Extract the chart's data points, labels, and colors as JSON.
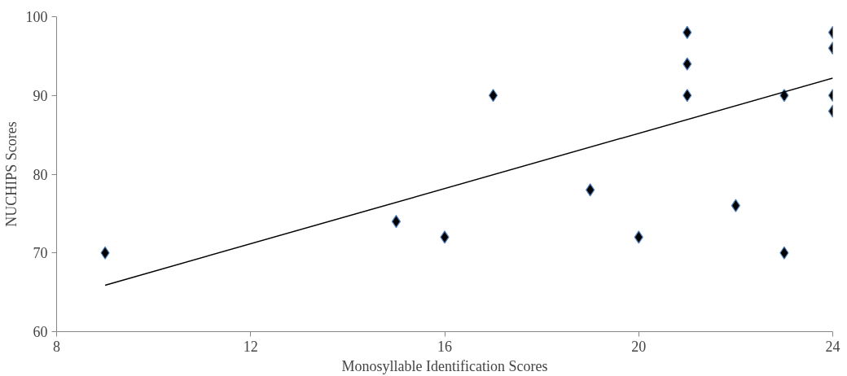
{
  "chart_data": {
    "type": "scatter",
    "xlabel": "Monosyllable Identification Scores",
    "ylabel": "NUCHIPS Scores",
    "xlim": [
      8,
      24
    ],
    "xticks": [
      8,
      12,
      16,
      20,
      24
    ],
    "ylim": [
      60,
      100
    ],
    "yticks": [
      60,
      70,
      80,
      90,
      100
    ],
    "grid": false,
    "marker": "diamond",
    "series": [
      {
        "color": "#000000",
        "x": [
          9,
          15,
          16,
          17,
          19,
          20,
          21,
          21,
          21,
          22,
          23,
          23,
          24,
          24,
          24,
          24
        ],
        "values": [
          70,
          74,
          72,
          90,
          78,
          72,
          98,
          94,
          90,
          76,
          90,
          70,
          98,
          96,
          90,
          88
        ]
      },
      {
        "type": "line",
        "marker": "none",
        "color": "#000000",
        "x": [
          9,
          24
        ],
        "values": [
          65.9,
          92.2
        ]
      }
    ]
  }
}
